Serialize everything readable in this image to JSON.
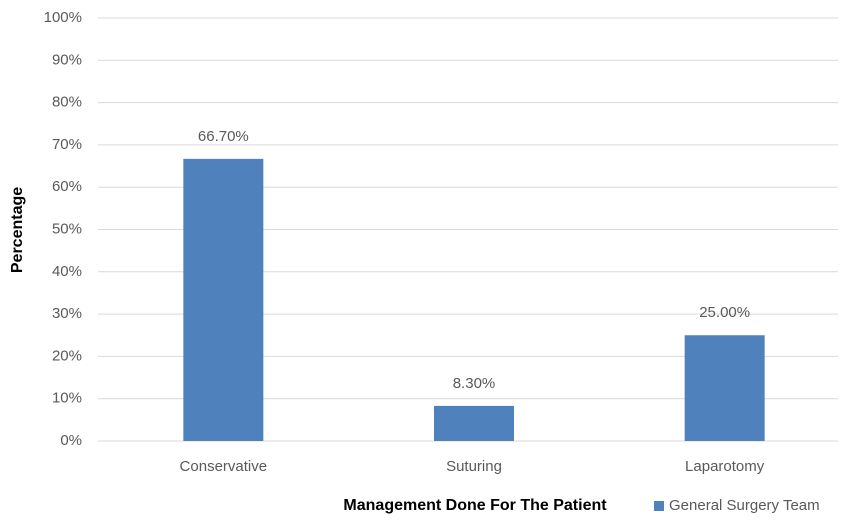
{
  "chart_data": {
    "type": "bar",
    "x_label": "Management Done For The Patient",
    "y_label": "Percentage",
    "categories": [
      "Conservative",
      "Suturing",
      "Laparotomy"
    ],
    "series": [
      {
        "name": "General Surgery Team",
        "color": "#4f81bd",
        "values": [
          66.7,
          8.3,
          25.0
        ],
        "value_labels": [
          "66.70%",
          "8.30%",
          "25.00%"
        ]
      }
    ],
    "ylim": [
      0,
      100
    ],
    "yticks": [
      {
        "value": 0,
        "label": "0%"
      },
      {
        "value": 10,
        "label": "10%"
      },
      {
        "value": 20,
        "label": "20%"
      },
      {
        "value": 30,
        "label": "30%"
      },
      {
        "value": 40,
        "label": "40%"
      },
      {
        "value": 50,
        "label": "50%"
      },
      {
        "value": 60,
        "label": "60%"
      },
      {
        "value": 70,
        "label": "70%"
      },
      {
        "value": 80,
        "label": "80%"
      },
      {
        "value": 90,
        "label": "90%"
      },
      {
        "value": 100,
        "label": "100%"
      }
    ],
    "grid": true,
    "legend": "bottom-right"
  }
}
